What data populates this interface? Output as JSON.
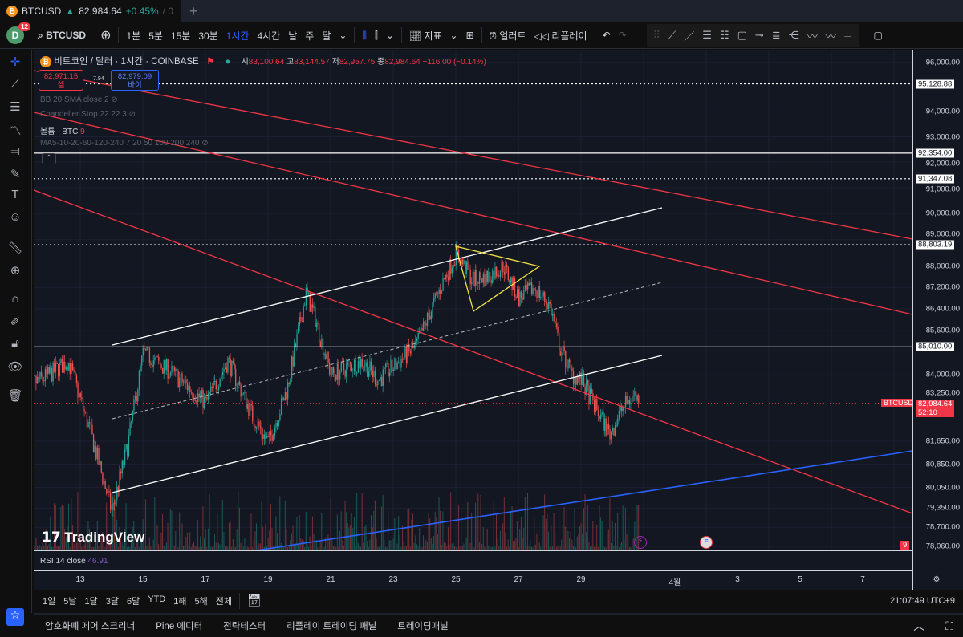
{
  "tab": {
    "symbol": "BTCUSD",
    "arrow": "▲",
    "price": "82,984.64",
    "change": "+0.45%",
    "extra": "/ 0",
    "new_tab": "+"
  },
  "toolbar": {
    "avatar": "D",
    "badge": "12",
    "symbol": "BTCUSD",
    "intervals": [
      "1분",
      "5분",
      "15분",
      "30분",
      "1시간",
      "4시간",
      "날",
      "주",
      "달"
    ],
    "active_interval": "1시간",
    "indicators": "지표",
    "alert": "얼러트",
    "replay": "리플레이"
  },
  "legend": {
    "title": "비트코인 / 달러 · 1시간 · COINBASE",
    "o_label": "시",
    "o": "83,100.64",
    "h_label": "고",
    "h": "83,144.57",
    "l_label": "저",
    "l": "82,957.75",
    "c_label": "종",
    "c": "82,984.64",
    "chg": "−116.00 (−0.14%)",
    "sell_price": "82,971.15",
    "sell_label": "셀",
    "spread": "7.94",
    "buy_price": "82,979.09",
    "buy_label": "바이",
    "indicators": [
      "BB 20 SMA close 2",
      "Chandelier Stop 22 22 3",
      "볼륨 · BTC",
      "MA5-10-20-60-120-240 7 20 50 100 200 240"
    ],
    "volume_value": "9"
  },
  "watermark": "TradingView",
  "colors": {
    "up": "#26a69a",
    "down": "#ef5350",
    "accent": "#2962ff",
    "line_red": "#f23645",
    "line_blue": "#2962ff",
    "triangle": "#f5e342"
  },
  "price_axis": {
    "ticks": [
      96000,
      94000,
      93000,
      92000,
      91000,
      90000,
      89000,
      88000,
      87200,
      86400,
      85600,
      84000,
      83250,
      81650,
      80850,
      80050,
      79350,
      78700,
      78060
    ],
    "tick_labels": [
      "96,000.00",
      "94,000.00",
      "93,000.00",
      "92,000.00",
      "91,000.00",
      "90,000.00",
      "89,000.00",
      "88,000.00",
      "87,200.00",
      "86,400.00",
      "85,600.00",
      "84,000.00",
      "83,250.00",
      "81,650.00",
      "80,850.00",
      "80,050.00",
      "79,350.00",
      "78,700.00",
      "78,060.00"
    ],
    "levels": [
      {
        "value": 95128.88,
        "label": "95,128.88",
        "style": "dotted"
      },
      {
        "value": 92354,
        "label": "92,354.00",
        "style": "solid"
      },
      {
        "value": 91347.08,
        "label": "91,347.08",
        "style": "dotted"
      },
      {
        "value": 88803.19,
        "label": "88,803.19",
        "style": "dotted"
      },
      {
        "value": 85010,
        "label": "85,010.00",
        "style": "solid"
      }
    ],
    "current": {
      "value": 82984.64,
      "label": "82,984.64",
      "countdown": "52:10",
      "symbol": "BTCUSD"
    },
    "scale": "log"
  },
  "price_path": [
    [
      11.2,
      83500
    ],
    [
      12.0,
      84000
    ],
    [
      12.6,
      84500
    ],
    [
      13.3,
      82000
    ],
    [
      14,
      79200
    ],
    [
      14.5,
      81500
    ],
    [
      15,
      84800
    ],
    [
      16,
      84000
    ],
    [
      17,
      83000
    ],
    [
      17.7,
      84500
    ],
    [
      18.5,
      82500
    ],
    [
      19,
      81600
    ],
    [
      19.6,
      83500
    ],
    [
      20.2,
      87000
    ],
    [
      20.5,
      86000
    ],
    [
      21,
      84000
    ],
    [
      22,
      84500
    ],
    [
      22.5,
      83800
    ],
    [
      23,
      84300
    ],
    [
      23.7,
      85000
    ],
    [
      24.5,
      87200
    ],
    [
      25,
      88500
    ],
    [
      25.5,
      87500
    ],
    [
      26,
      87600
    ],
    [
      26.5,
      88000
    ],
    [
      27,
      86800
    ],
    [
      27.5,
      87200
    ],
    [
      28,
      86500
    ],
    [
      28.3,
      85000
    ],
    [
      28.7,
      84000
    ],
    [
      29,
      83800
    ],
    [
      29.6,
      82500
    ],
    [
      29.9,
      81900
    ],
    [
      30.3,
      82800
    ],
    [
      30.7,
      83300
    ],
    [
      30.85,
      82984.64
    ]
  ],
  "rsi": {
    "label": "RSI 14 close",
    "value": "46.91"
  },
  "time_axis": {
    "labels": [
      {
        "day": 13,
        "text": "13"
      },
      {
        "day": 15,
        "text": "15"
      },
      {
        "day": 17,
        "text": "17"
      },
      {
        "day": 19,
        "text": "19"
      },
      {
        "day": 21,
        "text": "21"
      },
      {
        "day": 23,
        "text": "23"
      },
      {
        "day": 25,
        "text": "25"
      },
      {
        "day": 27,
        "text": "27"
      },
      {
        "day": 29,
        "text": "29"
      },
      {
        "day": 32,
        "text": "4월"
      },
      {
        "day": 34,
        "text": "3"
      },
      {
        "day": 36,
        "text": "5"
      },
      {
        "day": 38,
        "text": "7"
      }
    ]
  },
  "ranges": [
    "1일",
    "5날",
    "1달",
    "3달",
    "6달",
    "YTD",
    "1해",
    "5해",
    "전체"
  ],
  "clock": "21:07:49 UTC+9",
  "bottom_tabs": [
    "암호화폐 페어 스크리너",
    "Pine 에디터",
    "전략테스터",
    "리플레이 트레이딩 패널",
    "트레이딩패널"
  ]
}
